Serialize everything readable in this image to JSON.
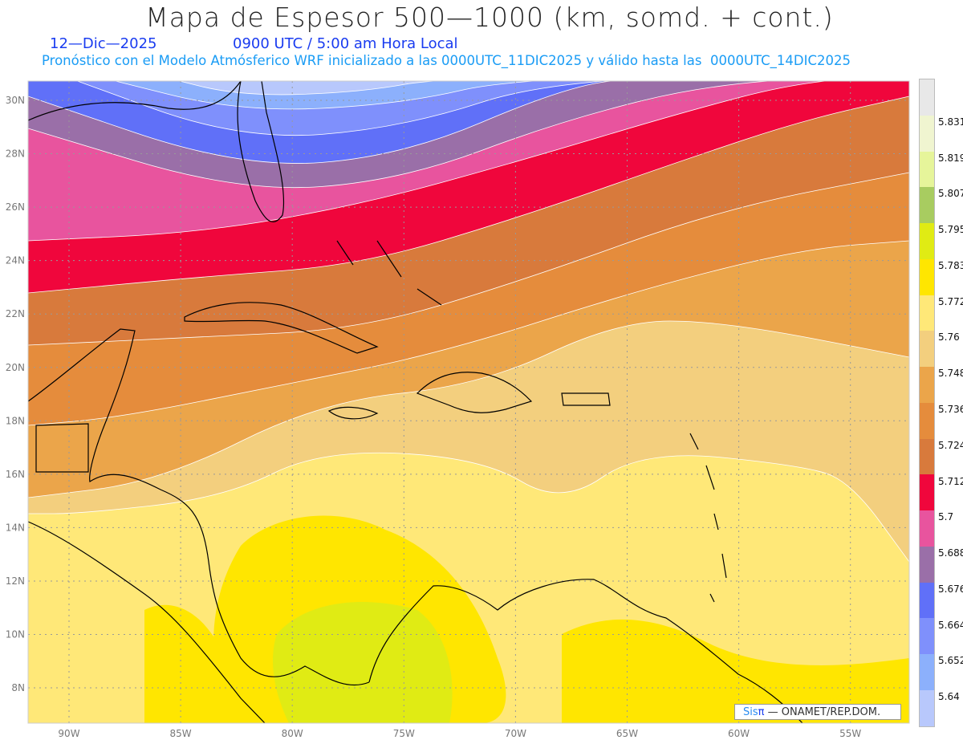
{
  "header": {
    "title": "Mapa de Espesor 500—1000 (km, somd. + cont.)",
    "date": "12—Dic—2025",
    "time": "0900 UTC / 5:00 am Hora Local",
    "subtitle": "Pronóstico con el Modelo Atmósferico WRF inicializado a las 0000UTC_11DIC2025 y válido hasta las  0000UTC_14DIC2025"
  },
  "map": {
    "lon_ticks": [
      "90W",
      "85W",
      "80W",
      "75W",
      "70W",
      "65W",
      "60W",
      "55W"
    ],
    "lat_ticks": [
      "30N",
      "28N",
      "26N",
      "24N",
      "22N",
      "20N",
      "18N",
      "16N",
      "14N",
      "12N",
      "10N",
      "8N"
    ]
  },
  "colorbar": {
    "labels": [
      "5.831",
      "5.819",
      "5.807",
      "5.795",
      "5.783",
      "5.772",
      "5.76",
      "5.748",
      "5.736",
      "5.724",
      "5.712",
      "5.7",
      "5.688",
      "5.676",
      "5.664",
      "5.652",
      "5.64"
    ],
    "colors": [
      "#e8e8e8",
      "#f0f5d0",
      "#e6f59a",
      "#a8cc60",
      "#e0eb14",
      "#ffe600",
      "#ffe878",
      "#f3cf7e",
      "#eba54a",
      "#e58c3c",
      "#d87a3c",
      "#f0063c",
      "#e8549e",
      "#9a6fa8",
      "#6070f8",
      "#7f90fc",
      "#8cb0fc",
      "#b8c8fc"
    ]
  },
  "logo": {
    "sis": "Sis",
    "pi": "π",
    "text": "— ONAMET/REP.DOM."
  }
}
